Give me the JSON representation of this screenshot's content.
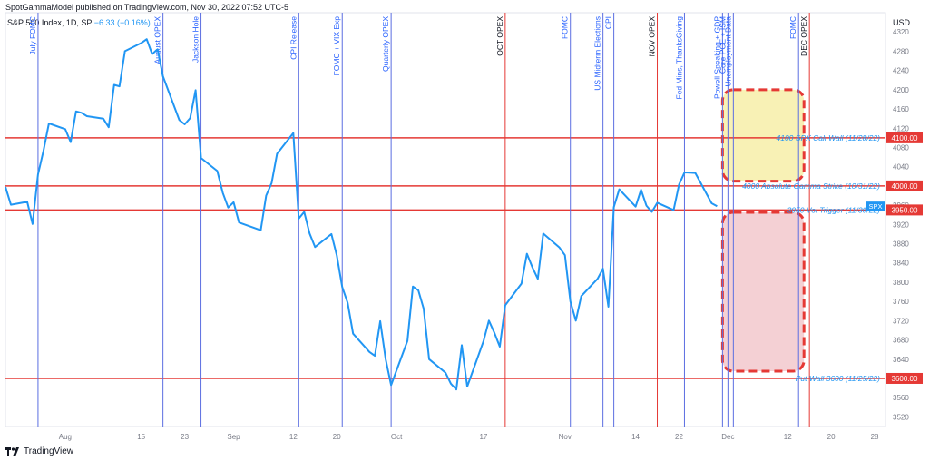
{
  "header": {
    "text": "SpotGammaModel published on TradingView.com, Nov 30, 2022 07:52 UTC-5"
  },
  "legend": {
    "symbol": "S&P 500 Index, 1D, SP",
    "change": "−6.33 (−0.16%)"
  },
  "footer": {
    "brand": "TradingView",
    "logo_icon": "tradingview-logo-icon"
  },
  "colors": {
    "price_line": "#2196f3",
    "event_line_blue": "#5b6ee1",
    "event_line_red": "#e53935",
    "level_line": "#e53935",
    "call_box_fill": "#f7eea8",
    "put_box_fill": "#f2c8cc",
    "box_border": "#e53935",
    "axis_text": "#787b86"
  },
  "chart_data": {
    "type": "line",
    "title": "",
    "axis_label": "USD",
    "symbol_tag": "SPX",
    "ylim": [
      3500,
      4360
    ],
    "yticks": [
      3520,
      3560,
      3600,
      3640,
      3680,
      3720,
      3760,
      3800,
      3840,
      3880,
      3920,
      3960,
      4000,
      4040,
      4080,
      4120,
      4160,
      4200,
      4240,
      4280,
      4320
    ],
    "xticks": [
      {
        "label": "Aug",
        "date": "2022-08-01"
      },
      {
        "label": "15",
        "date": "2022-08-15"
      },
      {
        "label": "23",
        "date": "2022-08-23"
      },
      {
        "label": "Sep",
        "date": "2022-09-01"
      },
      {
        "label": "12",
        "date": "2022-09-12"
      },
      {
        "label": "20",
        "date": "2022-09-20"
      },
      {
        "label": "Oct",
        "date": "2022-10-01"
      },
      {
        "label": "17",
        "date": "2022-10-17"
      },
      {
        "label": "Nov",
        "date": "2022-11-01"
      },
      {
        "label": "14",
        "date": "2022-11-14"
      },
      {
        "label": "22",
        "date": "2022-11-22"
      },
      {
        "label": "Dec",
        "date": "2022-12-01"
      },
      {
        "label": "12",
        "date": "2022-12-12"
      },
      {
        "label": "20",
        "date": "2022-12-20"
      },
      {
        "label": "28",
        "date": "2022-12-28"
      }
    ],
    "series": [
      {
        "values": [
          [
            "2022-07-21",
            3998
          ],
          [
            "2022-07-22",
            3961
          ],
          [
            "2022-07-25",
            3967
          ],
          [
            "2022-07-26",
            3921
          ],
          [
            "2022-07-27",
            4024
          ],
          [
            "2022-07-28",
            4073
          ],
          [
            "2022-07-29",
            4130
          ],
          [
            "2022-08-01",
            4118
          ],
          [
            "2022-08-02",
            4091
          ],
          [
            "2022-08-03",
            4155
          ],
          [
            "2022-08-04",
            4152
          ],
          [
            "2022-08-05",
            4145
          ],
          [
            "2022-08-08",
            4140
          ],
          [
            "2022-08-09",
            4122
          ],
          [
            "2022-08-10",
            4210
          ],
          [
            "2022-08-11",
            4207
          ],
          [
            "2022-08-12",
            4280
          ],
          [
            "2022-08-15",
            4297
          ],
          [
            "2022-08-16",
            4305
          ],
          [
            "2022-08-17",
            4274
          ],
          [
            "2022-08-18",
            4284
          ],
          [
            "2022-08-19",
            4228
          ],
          [
            "2022-08-22",
            4137
          ],
          [
            "2022-08-23",
            4128
          ],
          [
            "2022-08-24",
            4141
          ],
          [
            "2022-08-25",
            4199
          ],
          [
            "2022-08-26",
            4058
          ],
          [
            "2022-08-29",
            4031
          ],
          [
            "2022-08-30",
            3986
          ],
          [
            "2022-08-31",
            3955
          ],
          [
            "2022-09-01",
            3966
          ],
          [
            "2022-09-02",
            3924
          ],
          [
            "2022-09-06",
            3908
          ],
          [
            "2022-09-07",
            3980
          ],
          [
            "2022-09-08",
            4006
          ],
          [
            "2022-09-09",
            4067
          ],
          [
            "2022-09-12",
            4110
          ],
          [
            "2022-09-13",
            3932
          ],
          [
            "2022-09-14",
            3946
          ],
          [
            "2022-09-15",
            3901
          ],
          [
            "2022-09-16",
            3873
          ],
          [
            "2022-09-19",
            3900
          ],
          [
            "2022-09-20",
            3856
          ],
          [
            "2022-09-21",
            3790
          ],
          [
            "2022-09-22",
            3757
          ],
          [
            "2022-09-23",
            3693
          ],
          [
            "2022-09-26",
            3655
          ],
          [
            "2022-09-27",
            3647
          ],
          [
            "2022-09-28",
            3719
          ],
          [
            "2022-09-29",
            3640
          ],
          [
            "2022-09-30",
            3586
          ],
          [
            "2022-10-03",
            3678
          ],
          [
            "2022-10-04",
            3791
          ],
          [
            "2022-10-05",
            3783
          ],
          [
            "2022-10-06",
            3745
          ],
          [
            "2022-10-07",
            3640
          ],
          [
            "2022-10-10",
            3612
          ],
          [
            "2022-10-11",
            3589
          ],
          [
            "2022-10-12",
            3577
          ],
          [
            "2022-10-13",
            3669
          ],
          [
            "2022-10-14",
            3583
          ],
          [
            "2022-10-17",
            3677
          ],
          [
            "2022-10-18",
            3720
          ],
          [
            "2022-10-19",
            3695
          ],
          [
            "2022-10-20",
            3666
          ],
          [
            "2022-10-21",
            3752
          ],
          [
            "2022-10-24",
            3797
          ],
          [
            "2022-10-25",
            3859
          ],
          [
            "2022-10-26",
            3831
          ],
          [
            "2022-10-27",
            3807
          ],
          [
            "2022-10-28",
            3901
          ],
          [
            "2022-10-31",
            3872
          ],
          [
            "2022-11-01",
            3856
          ],
          [
            "2022-11-02",
            3760
          ],
          [
            "2022-11-03",
            3720
          ],
          [
            "2022-11-04",
            3771
          ],
          [
            "2022-11-07",
            3807
          ],
          [
            "2022-11-08",
            3828
          ],
          [
            "2022-11-09",
            3749
          ],
          [
            "2022-11-10",
            3956
          ],
          [
            "2022-11-11",
            3993
          ],
          [
            "2022-11-14",
            3957
          ],
          [
            "2022-11-15",
            3992
          ],
          [
            "2022-11-16",
            3959
          ],
          [
            "2022-11-17",
            3946
          ],
          [
            "2022-11-18",
            3965
          ],
          [
            "2022-11-21",
            3950
          ],
          [
            "2022-11-22",
            4003
          ],
          [
            "2022-11-23",
            4028
          ],
          [
            "2022-11-25",
            4027
          ],
          [
            "2022-11-28",
            3964
          ],
          [
            "2022-11-29",
            3958
          ]
        ]
      }
    ],
    "price_labels": [
      {
        "value": 4100,
        "text": "4100.00"
      },
      {
        "value": 4000,
        "text": "4000.00"
      },
      {
        "value": 3950,
        "text": "3950.00"
      },
      {
        "value": 3600,
        "text": "3600.00"
      }
    ],
    "levels": [
      {
        "value": 4100,
        "label": "4100 SPX Call Wall (11/28/22)"
      },
      {
        "value": 4000,
        "label": "4000 Absolute Gamma Strike (10/31/22)"
      },
      {
        "value": 3950,
        "label": "3950 Vol Trigger (11/30/22)"
      },
      {
        "value": 3600,
        "label": "Put Wall 3600 (11/25/22)"
      }
    ],
    "events": [
      {
        "date": "2022-07-27",
        "label": "July FOMC",
        "color": "blue"
      },
      {
        "date": "2022-08-19",
        "label": "August OPEX",
        "color": "blue"
      },
      {
        "date": "2022-08-26",
        "label": "Jackson Hole",
        "color": "blue"
      },
      {
        "date": "2022-09-13",
        "label": "CPI Release",
        "color": "blue"
      },
      {
        "date": "2022-09-21",
        "label": "FOMC + VIX Exp",
        "color": "blue"
      },
      {
        "date": "2022-09-30",
        "label": "Quarterly OPEX",
        "color": "blue"
      },
      {
        "date": "2022-10-21",
        "label": "OCT OPEX",
        "color": "red"
      },
      {
        "date": "2022-11-02",
        "label": "FOMC",
        "color": "blue"
      },
      {
        "date": "2022-11-08",
        "label": "US Midterm Elections",
        "color": "blue"
      },
      {
        "date": "2022-11-10",
        "label": "CPI",
        "color": "blue"
      },
      {
        "date": "2022-11-18",
        "label": "NOV OPEX",
        "color": "red"
      },
      {
        "date": "2022-11-23",
        "label": "Fed Mins, ThanksGiving",
        "color": "blue"
      },
      {
        "date": "2022-11-30",
        "label": "Powell Speaking + GDP",
        "color": "blue"
      },
      {
        "date": "2022-12-01",
        "label": "Core PCE + ISM",
        "color": "blue"
      },
      {
        "date": "2022-12-02",
        "label": "Unemployment Data",
        "color": "blue"
      },
      {
        "date": "2022-12-14",
        "label": "FOMC",
        "color": "blue"
      },
      {
        "date": "2022-12-16",
        "label": "DEC OPEX",
        "color": "red"
      }
    ],
    "zones": [
      {
        "name": "call-zone",
        "date_start": "2022-11-30",
        "date_end": "2022-12-15",
        "y_low": 4010,
        "y_high": 4200,
        "fill": "yellow"
      },
      {
        "name": "put-zone",
        "date_start": "2022-11-30",
        "date_end": "2022-12-15",
        "y_low": 3615,
        "y_high": 3945,
        "fill": "pink"
      }
    ]
  }
}
